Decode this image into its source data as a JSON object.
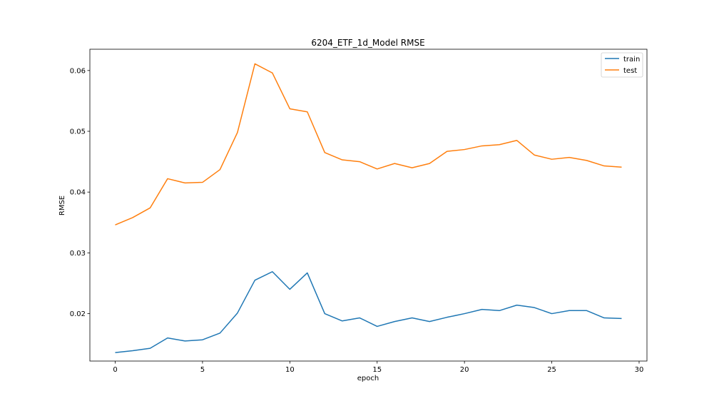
{
  "chart_data": {
    "type": "line",
    "title": "6204_ETF_1d_Model RMSE",
    "xlabel": "epoch",
    "ylabel": "RMSE",
    "xlim": [
      -1.45,
      30.45
    ],
    "ylim": [
      0.0122,
      0.0635
    ],
    "xticks": [
      0,
      5,
      10,
      15,
      20,
      25,
      30
    ],
    "yticks": [
      0.02,
      0.03,
      0.04,
      0.05,
      0.06
    ],
    "ytick_labels": [
      "0.02",
      "0.03",
      "0.04",
      "0.05",
      "0.06"
    ],
    "grid": false,
    "legend_position": "top-right",
    "x": [
      0,
      1,
      2,
      3,
      4,
      5,
      6,
      7,
      8,
      9,
      10,
      11,
      12,
      13,
      14,
      15,
      16,
      17,
      18,
      19,
      20,
      21,
      22,
      23,
      24,
      25,
      26,
      27,
      28,
      29
    ],
    "series": [
      {
        "name": "train",
        "color": "#1f77b4",
        "values": [
          0.0136,
          0.0139,
          0.0143,
          0.016,
          0.0155,
          0.0157,
          0.0168,
          0.0201,
          0.0255,
          0.0269,
          0.024,
          0.0267,
          0.02,
          0.0188,
          0.0193,
          0.0179,
          0.0187,
          0.0193,
          0.0187,
          0.0194,
          0.02,
          0.0207,
          0.0205,
          0.0214,
          0.021,
          0.02,
          0.0205,
          0.0205,
          0.0193,
          0.0192
        ]
      },
      {
        "name": "test",
        "color": "#ff7f0e",
        "values": [
          0.0346,
          0.0358,
          0.0374,
          0.0422,
          0.0415,
          0.0416,
          0.0437,
          0.0498,
          0.0611,
          0.0596,
          0.0537,
          0.0532,
          0.0465,
          0.0453,
          0.045,
          0.0438,
          0.0447,
          0.044,
          0.0447,
          0.0467,
          0.047,
          0.0476,
          0.0478,
          0.0485,
          0.0461,
          0.0454,
          0.0457,
          0.0452,
          0.0443,
          0.0441
        ]
      }
    ]
  }
}
